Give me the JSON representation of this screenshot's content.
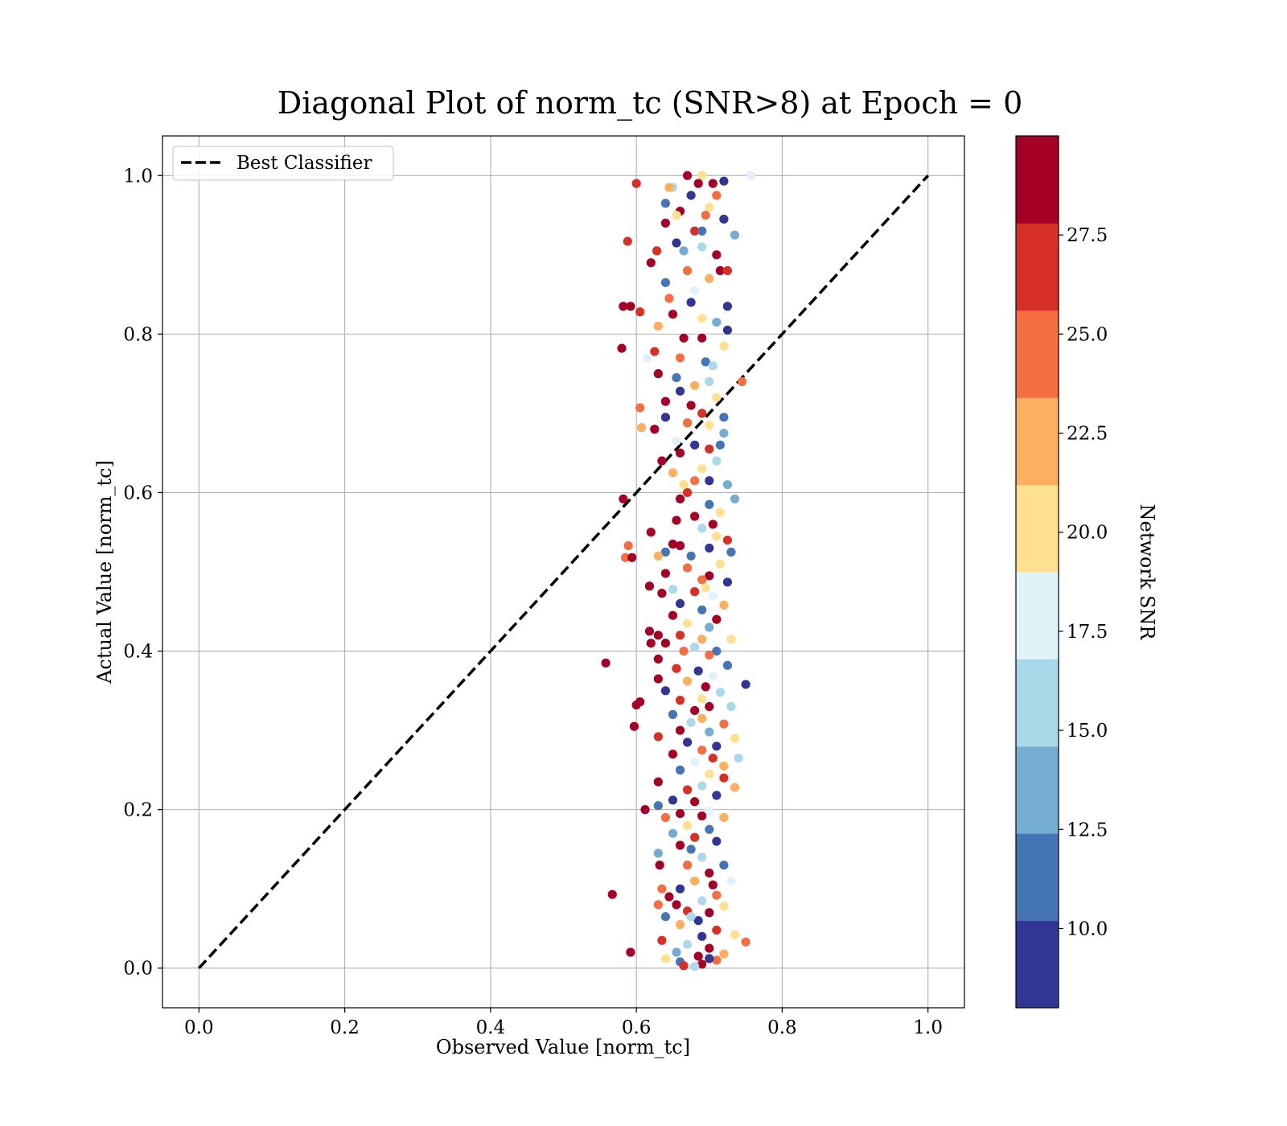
{
  "chart_data": {
    "type": "scatter",
    "title": "Diagonal Plot of norm_tc (SNR>8) at Epoch = 0",
    "xlabel": "Observed Value [norm_tc]",
    "ylabel": "Actual Value [norm_tc]",
    "xlim": [
      -0.05,
      1.05
    ],
    "ylim": [
      -0.05,
      1.05
    ],
    "x_ticks": [
      "0.0",
      "0.2",
      "0.4",
      "0.6",
      "0.8",
      "1.0"
    ],
    "y_ticks": [
      "0.0",
      "0.2",
      "0.4",
      "0.6",
      "0.8",
      "1.0"
    ],
    "grid": true,
    "legend": {
      "position": "upper-left",
      "entries": [
        "Best Classifier"
      ]
    },
    "reference_line": {
      "label": "Best Classifier",
      "style": "dashed",
      "color": "#000000",
      "x": [
        0,
        1
      ],
      "y": [
        0,
        1
      ]
    },
    "colorbar": {
      "label": "Network SNR",
      "range": [
        8.0,
        30.0
      ],
      "ticks": [
        "10.0",
        "12.5",
        "15.0",
        "17.5",
        "20.0",
        "22.5",
        "25.0",
        "27.5"
      ],
      "tick_values": [
        10.0,
        12.5,
        15.0,
        17.5,
        20.0,
        22.5,
        25.0,
        27.5
      ],
      "colors": [
        "#313695",
        "#4575b4",
        "#74add1",
        "#abd9e9",
        "#e0f3f8",
        "#fee090",
        "#fdae61",
        "#f46d43",
        "#d73027",
        "#a50026"
      ]
    },
    "points": [
      {
        "x": 0.6,
        "y": 0.99,
        "snr": 27
      },
      {
        "x": 0.588,
        "y": 0.917,
        "snr": 27
      },
      {
        "x": 0.67,
        "y": 1.0,
        "snr": 29
      },
      {
        "x": 0.69,
        "y": 1.0,
        "snr": 20
      },
      {
        "x": 0.757,
        "y": 1.0,
        "snr": 18
      },
      {
        "x": 0.72,
        "y": 0.993,
        "snr": 9
      },
      {
        "x": 0.685,
        "y": 0.99,
        "snr": 29
      },
      {
        "x": 0.65,
        "y": 0.985,
        "snr": 16
      },
      {
        "x": 0.71,
        "y": 0.975,
        "snr": 24
      },
      {
        "x": 0.64,
        "y": 0.965,
        "snr": 11
      },
      {
        "x": 0.7,
        "y": 0.96,
        "snr": 20
      },
      {
        "x": 0.66,
        "y": 0.955,
        "snr": 29
      },
      {
        "x": 0.72,
        "y": 0.945,
        "snr": 9
      },
      {
        "x": 0.64,
        "y": 0.94,
        "snr": 29
      },
      {
        "x": 0.68,
        "y": 0.93,
        "snr": 27
      },
      {
        "x": 0.735,
        "y": 0.925,
        "snr": 14
      },
      {
        "x": 0.655,
        "y": 0.915,
        "snr": 10
      },
      {
        "x": 0.69,
        "y": 0.91,
        "snr": 16
      },
      {
        "x": 0.628,
        "y": 0.905,
        "snr": 27
      },
      {
        "x": 0.71,
        "y": 0.9,
        "snr": 29
      },
      {
        "x": 0.62,
        "y": 0.89,
        "snr": 29
      },
      {
        "x": 0.67,
        "y": 0.88,
        "snr": 24
      },
      {
        "x": 0.7,
        "y": 0.87,
        "snr": 22
      },
      {
        "x": 0.64,
        "y": 0.865,
        "snr": 11
      },
      {
        "x": 0.68,
        "y": 0.855,
        "snr": 18
      },
      {
        "x": 0.725,
        "y": 0.835,
        "snr": 9
      },
      {
        "x": 0.582,
        "y": 0.835,
        "snr": 29
      },
      {
        "x": 0.592,
        "y": 0.835,
        "snr": 29
      },
      {
        "x": 0.605,
        "y": 0.828,
        "snr": 27
      },
      {
        "x": 0.65,
        "y": 0.825,
        "snr": 29
      },
      {
        "x": 0.69,
        "y": 0.82,
        "snr": 20
      },
      {
        "x": 0.71,
        "y": 0.815,
        "snr": 14
      },
      {
        "x": 0.63,
        "y": 0.81,
        "snr": 22
      },
      {
        "x": 0.725,
        "y": 0.805,
        "snr": 9
      },
      {
        "x": 0.665,
        "y": 0.795,
        "snr": 29
      },
      {
        "x": 0.69,
        "y": 0.795,
        "snr": 29
      },
      {
        "x": 0.72,
        "y": 0.785,
        "snr": 21
      },
      {
        "x": 0.58,
        "y": 0.782,
        "snr": 29
      },
      {
        "x": 0.625,
        "y": 0.778,
        "snr": 27
      },
      {
        "x": 0.66,
        "y": 0.77,
        "snr": 24
      },
      {
        "x": 0.695,
        "y": 0.765,
        "snr": 12
      },
      {
        "x": 0.615,
        "y": 0.77,
        "snr": 18
      },
      {
        "x": 0.63,
        "y": 0.75,
        "snr": 29
      },
      {
        "x": 0.655,
        "y": 0.745,
        "snr": 11
      },
      {
        "x": 0.7,
        "y": 0.74,
        "snr": 15
      },
      {
        "x": 0.745,
        "y": 0.74,
        "snr": 25
      },
      {
        "x": 0.68,
        "y": 0.735,
        "snr": 22
      },
      {
        "x": 0.66,
        "y": 0.728,
        "snr": 9
      },
      {
        "x": 0.71,
        "y": 0.72,
        "snr": 20
      },
      {
        "x": 0.64,
        "y": 0.715,
        "snr": 29
      },
      {
        "x": 0.605,
        "y": 0.707,
        "snr": 25
      },
      {
        "x": 0.69,
        "y": 0.7,
        "snr": 27
      },
      {
        "x": 0.72,
        "y": 0.695,
        "snr": 11
      },
      {
        "x": 0.64,
        "y": 0.695,
        "snr": 10
      },
      {
        "x": 0.67,
        "y": 0.688,
        "snr": 24
      },
      {
        "x": 0.7,
        "y": 0.685,
        "snr": 21
      },
      {
        "x": 0.607,
        "y": 0.682,
        "snr": 22
      },
      {
        "x": 0.625,
        "y": 0.68,
        "snr": 29
      },
      {
        "x": 0.72,
        "y": 0.675,
        "snr": 14
      },
      {
        "x": 0.655,
        "y": 0.665,
        "snr": 18
      },
      {
        "x": 0.68,
        "y": 0.66,
        "snr": 10
      },
      {
        "x": 0.7,
        "y": 0.655,
        "snr": 27
      },
      {
        "x": 0.66,
        "y": 0.65,
        "snr": 29
      },
      {
        "x": 0.71,
        "y": 0.64,
        "snr": 16
      },
      {
        "x": 0.635,
        "y": 0.64,
        "snr": 29
      },
      {
        "x": 0.69,
        "y": 0.63,
        "snr": 20
      },
      {
        "x": 0.65,
        "y": 0.625,
        "snr": 22
      },
      {
        "x": 0.68,
        "y": 0.615,
        "snr": 24
      },
      {
        "x": 0.7,
        "y": 0.615,
        "snr": 9
      },
      {
        "x": 0.725,
        "y": 0.61,
        "snr": 14
      },
      {
        "x": 0.67,
        "y": 0.6,
        "snr": 27
      },
      {
        "x": 0.66,
        "y": 0.592,
        "snr": 29
      },
      {
        "x": 0.735,
        "y": 0.592,
        "snr": 14
      },
      {
        "x": 0.582,
        "y": 0.592,
        "snr": 29
      },
      {
        "x": 0.7,
        "y": 0.585,
        "snr": 11
      },
      {
        "x": 0.715,
        "y": 0.575,
        "snr": 19
      },
      {
        "x": 0.68,
        "y": 0.57,
        "snr": 29
      },
      {
        "x": 0.655,
        "y": 0.565,
        "snr": 29
      },
      {
        "x": 0.69,
        "y": 0.555,
        "snr": 16
      },
      {
        "x": 0.62,
        "y": 0.55,
        "snr": 29
      },
      {
        "x": 0.71,
        "y": 0.545,
        "snr": 20
      },
      {
        "x": 0.725,
        "y": 0.54,
        "snr": 27
      },
      {
        "x": 0.65,
        "y": 0.535,
        "snr": 29
      },
      {
        "x": 0.66,
        "y": 0.533,
        "snr": 29
      },
      {
        "x": 0.589,
        "y": 0.533,
        "snr": 25
      },
      {
        "x": 0.7,
        "y": 0.53,
        "snr": 9
      },
      {
        "x": 0.73,
        "y": 0.525,
        "snr": 11
      },
      {
        "x": 0.64,
        "y": 0.525,
        "snr": 12
      },
      {
        "x": 0.585,
        "y": 0.518,
        "snr": 25
      },
      {
        "x": 0.594,
        "y": 0.518,
        "snr": 29
      },
      {
        "x": 0.63,
        "y": 0.52,
        "snr": 22
      },
      {
        "x": 0.715,
        "y": 0.51,
        "snr": 21
      },
      {
        "x": 0.67,
        "y": 0.505,
        "snr": 25
      },
      {
        "x": 0.64,
        "y": 0.498,
        "snr": 29
      },
      {
        "x": 0.7,
        "y": 0.495,
        "snr": 29
      },
      {
        "x": 0.69,
        "y": 0.49,
        "snr": 24
      },
      {
        "x": 0.725,
        "y": 0.487,
        "snr": 9
      },
      {
        "x": 0.618,
        "y": 0.482,
        "snr": 29
      },
      {
        "x": 0.65,
        "y": 0.478,
        "snr": 15
      },
      {
        "x": 0.635,
        "y": 0.473,
        "snr": 29
      },
      {
        "x": 0.68,
        "y": 0.475,
        "snr": 27
      },
      {
        "x": 0.705,
        "y": 0.47,
        "snr": 18
      },
      {
        "x": 0.66,
        "y": 0.46,
        "snr": 10
      },
      {
        "x": 0.72,
        "y": 0.458,
        "snr": 22
      },
      {
        "x": 0.69,
        "y": 0.452,
        "snr": 11
      },
      {
        "x": 0.65,
        "y": 0.445,
        "snr": 29
      },
      {
        "x": 0.71,
        "y": 0.44,
        "snr": 29
      },
      {
        "x": 0.67,
        "y": 0.435,
        "snr": 20
      },
      {
        "x": 0.7,
        "y": 0.43,
        "snr": 14
      },
      {
        "x": 0.618,
        "y": 0.425,
        "snr": 29
      },
      {
        "x": 0.63,
        "y": 0.42,
        "snr": 29
      },
      {
        "x": 0.66,
        "y": 0.42,
        "snr": 27
      },
      {
        "x": 0.69,
        "y": 0.415,
        "snr": 23
      },
      {
        "x": 0.73,
        "y": 0.415,
        "snr": 21
      },
      {
        "x": 0.62,
        "y": 0.41,
        "snr": 29
      },
      {
        "x": 0.64,
        "y": 0.41,
        "snr": 29
      },
      {
        "x": 0.68,
        "y": 0.405,
        "snr": 16
      },
      {
        "x": 0.71,
        "y": 0.4,
        "snr": 11
      },
      {
        "x": 0.7,
        "y": 0.395,
        "snr": 25
      },
      {
        "x": 0.63,
        "y": 0.39,
        "snr": 29
      },
      {
        "x": 0.558,
        "y": 0.385,
        "snr": 28
      },
      {
        "x": 0.725,
        "y": 0.382,
        "snr": 11
      },
      {
        "x": 0.655,
        "y": 0.378,
        "snr": 27
      },
      {
        "x": 0.685,
        "y": 0.375,
        "snr": 9
      },
      {
        "x": 0.705,
        "y": 0.368,
        "snr": 18
      },
      {
        "x": 0.63,
        "y": 0.365,
        "snr": 29
      },
      {
        "x": 0.67,
        "y": 0.362,
        "snr": 22
      },
      {
        "x": 0.75,
        "y": 0.358,
        "snr": 9
      },
      {
        "x": 0.64,
        "y": 0.35,
        "snr": 10
      },
      {
        "x": 0.715,
        "y": 0.348,
        "snr": 16
      },
      {
        "x": 0.69,
        "y": 0.34,
        "snr": 20
      },
      {
        "x": 0.66,
        "y": 0.338,
        "snr": 27
      },
      {
        "x": 0.6,
        "y": 0.332,
        "snr": 28
      },
      {
        "x": 0.605,
        "y": 0.336,
        "snr": 29
      },
      {
        "x": 0.7,
        "y": 0.33,
        "snr": 29
      },
      {
        "x": 0.73,
        "y": 0.33,
        "snr": 15
      },
      {
        "x": 0.68,
        "y": 0.325,
        "snr": 29
      },
      {
        "x": 0.65,
        "y": 0.32,
        "snr": 11
      },
      {
        "x": 0.69,
        "y": 0.315,
        "snr": 22
      },
      {
        "x": 0.72,
        "y": 0.308,
        "snr": 24
      },
      {
        "x": 0.597,
        "y": 0.305,
        "snr": 29
      },
      {
        "x": 0.66,
        "y": 0.3,
        "snr": 29
      },
      {
        "x": 0.7,
        "y": 0.298,
        "snr": 14
      },
      {
        "x": 0.63,
        "y": 0.292,
        "snr": 27
      },
      {
        "x": 0.735,
        "y": 0.29,
        "snr": 21
      },
      {
        "x": 0.67,
        "y": 0.285,
        "snr": 10
      },
      {
        "x": 0.71,
        "y": 0.28,
        "snr": 9
      },
      {
        "x": 0.69,
        "y": 0.275,
        "snr": 25
      },
      {
        "x": 0.65,
        "y": 0.27,
        "snr": 29
      },
      {
        "x": 0.74,
        "y": 0.265,
        "snr": 16
      },
      {
        "x": 0.68,
        "y": 0.26,
        "snr": 18
      },
      {
        "x": 0.72,
        "y": 0.255,
        "snr": 23
      },
      {
        "x": 0.66,
        "y": 0.25,
        "snr": 11
      },
      {
        "x": 0.7,
        "y": 0.245,
        "snr": 20
      },
      {
        "x": 0.63,
        "y": 0.235,
        "snr": 29
      },
      {
        "x": 0.72,
        "y": 0.24,
        "snr": 27
      },
      {
        "x": 0.69,
        "y": 0.23,
        "snr": 15
      },
      {
        "x": 0.67,
        "y": 0.225,
        "snr": 27
      },
      {
        "x": 0.735,
        "y": 0.228,
        "snr": 22
      },
      {
        "x": 0.71,
        "y": 0.218,
        "snr": 10
      },
      {
        "x": 0.65,
        "y": 0.212,
        "snr": 9
      },
      {
        "x": 0.68,
        "y": 0.21,
        "snr": 29
      },
      {
        "x": 0.63,
        "y": 0.205,
        "snr": 12
      },
      {
        "x": 0.612,
        "y": 0.2,
        "snr": 28
      },
      {
        "x": 0.7,
        "y": 0.198,
        "snr": 18
      },
      {
        "x": 0.66,
        "y": 0.195,
        "snr": 29
      },
      {
        "x": 0.69,
        "y": 0.192,
        "snr": 29
      },
      {
        "x": 0.72,
        "y": 0.19,
        "snr": 22
      },
      {
        "x": 0.64,
        "y": 0.19,
        "snr": 24
      },
      {
        "x": 0.67,
        "y": 0.18,
        "snr": 20
      },
      {
        "x": 0.7,
        "y": 0.175,
        "snr": 11
      },
      {
        "x": 0.65,
        "y": 0.17,
        "snr": 14
      },
      {
        "x": 0.68,
        "y": 0.165,
        "snr": 27
      },
      {
        "x": 0.71,
        "y": 0.16,
        "snr": 9
      },
      {
        "x": 0.66,
        "y": 0.155,
        "snr": 29
      },
      {
        "x": 0.63,
        "y": 0.145,
        "snr": 14
      },
      {
        "x": 0.69,
        "y": 0.14,
        "snr": 16
      },
      {
        "x": 0.72,
        "y": 0.13,
        "snr": 11
      },
      {
        "x": 0.632,
        "y": 0.13,
        "snr": 29
      },
      {
        "x": 0.67,
        "y": 0.13,
        "snr": 25
      },
      {
        "x": 0.7,
        "y": 0.12,
        "snr": 29
      },
      {
        "x": 0.68,
        "y": 0.11,
        "snr": 22
      },
      {
        "x": 0.73,
        "y": 0.11,
        "snr": 18
      },
      {
        "x": 0.66,
        "y": 0.1,
        "snr": 10
      },
      {
        "x": 0.635,
        "y": 0.1,
        "snr": 25
      },
      {
        "x": 0.567,
        "y": 0.093,
        "snr": 29
      },
      {
        "x": 0.645,
        "y": 0.09,
        "snr": 29
      },
      {
        "x": 0.71,
        "y": 0.092,
        "snr": 24
      },
      {
        "x": 0.69,
        "y": 0.085,
        "snr": 15
      },
      {
        "x": 0.655,
        "y": 0.08,
        "snr": 29
      },
      {
        "x": 0.63,
        "y": 0.08,
        "snr": 25
      },
      {
        "x": 0.72,
        "y": 0.078,
        "snr": 20
      },
      {
        "x": 0.67,
        "y": 0.072,
        "snr": 27
      },
      {
        "x": 0.7,
        "y": 0.07,
        "snr": 29
      },
      {
        "x": 0.64,
        "y": 0.065,
        "snr": 11
      },
      {
        "x": 0.685,
        "y": 0.06,
        "snr": 9
      },
      {
        "x": 0.66,
        "y": 0.055,
        "snr": 22
      },
      {
        "x": 0.71,
        "y": 0.048,
        "snr": 27
      },
      {
        "x": 0.735,
        "y": 0.042,
        "snr": 21
      },
      {
        "x": 0.69,
        "y": 0.04,
        "snr": 10
      },
      {
        "x": 0.75,
        "y": 0.033,
        "snr": 25
      },
      {
        "x": 0.635,
        "y": 0.035,
        "snr": 27
      },
      {
        "x": 0.67,
        "y": 0.03,
        "snr": 16
      },
      {
        "x": 0.7,
        "y": 0.025,
        "snr": 29
      },
      {
        "x": 0.655,
        "y": 0.02,
        "snr": 14
      },
      {
        "x": 0.592,
        "y": 0.02,
        "snr": 28
      },
      {
        "x": 0.72,
        "y": 0.018,
        "snr": 22
      },
      {
        "x": 0.685,
        "y": 0.015,
        "snr": 29
      },
      {
        "x": 0.64,
        "y": 0.012,
        "snr": 20
      },
      {
        "x": 0.71,
        "y": 0.01,
        "snr": 24
      },
      {
        "x": 0.66,
        "y": 0.008,
        "snr": 11
      },
      {
        "x": 0.69,
        "y": 0.005,
        "snr": 29
      },
      {
        "x": 0.68,
        "y": 0.002,
        "snr": 15
      },
      {
        "x": 0.7,
        "y": 0.012,
        "snr": 9
      },
      {
        "x": 0.665,
        "y": 0.003,
        "snr": 27
      },
      {
        "x": 0.695,
        "y": 0.95,
        "snr": 25
      },
      {
        "x": 0.675,
        "y": 0.975,
        "snr": 9
      },
      {
        "x": 0.705,
        "y": 0.99,
        "snr": 29
      },
      {
        "x": 0.645,
        "y": 0.985,
        "snr": 22
      },
      {
        "x": 0.665,
        "y": 0.905,
        "snr": 14
      },
      {
        "x": 0.715,
        "y": 0.88,
        "snr": 29
      },
      {
        "x": 0.645,
        "y": 0.845,
        "snr": 25
      },
      {
        "x": 0.675,
        "y": 0.84,
        "snr": 9
      },
      {
        "x": 0.705,
        "y": 0.76,
        "snr": 16
      },
      {
        "x": 0.675,
        "y": 0.71,
        "snr": 29
      },
      {
        "x": 0.715,
        "y": 0.66,
        "snr": 11
      },
      {
        "x": 0.665,
        "y": 0.61,
        "snr": 21
      },
      {
        "x": 0.705,
        "y": 0.56,
        "snr": 29
      },
      {
        "x": 0.675,
        "y": 0.52,
        "snr": 11
      },
      {
        "x": 0.695,
        "y": 0.48,
        "snr": 19
      },
      {
        "x": 0.665,
        "y": 0.4,
        "snr": 24
      },
      {
        "x": 0.695,
        "y": 0.355,
        "snr": 29
      },
      {
        "x": 0.675,
        "y": 0.31,
        "snr": 16
      },
      {
        "x": 0.705,
        "y": 0.265,
        "snr": 27
      },
      {
        "x": 0.675,
        "y": 0.15,
        "snr": 11
      },
      {
        "x": 0.705,
        "y": 0.105,
        "snr": 29
      },
      {
        "x": 0.675,
        "y": 0.065,
        "snr": 16
      },
      {
        "x": 0.655,
        "y": 0.95,
        "snr": 19
      },
      {
        "x": 0.69,
        "y": 0.93,
        "snr": 11
      },
      {
        "x": 0.725,
        "y": 0.88,
        "snr": 27
      }
    ]
  }
}
